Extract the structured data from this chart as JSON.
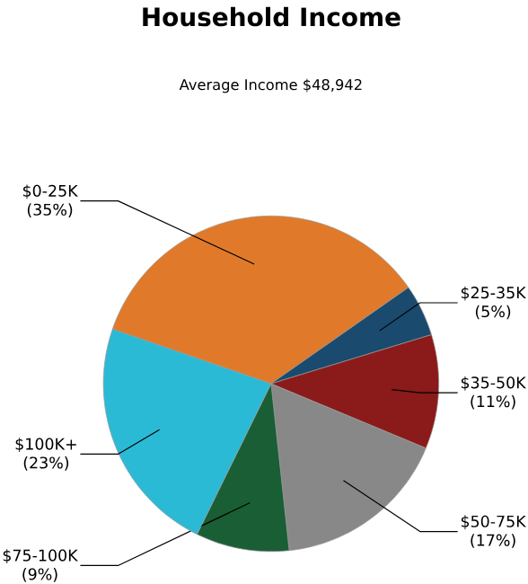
{
  "chart_data": {
    "type": "pie",
    "title": "Household Income",
    "subtitle": "Average Income  $48,942",
    "categories": [
      "$0-25K",
      "$25-35K",
      "$35-50K",
      "$50-75K",
      "$75-100K",
      "$100K+"
    ],
    "values": [
      35,
      5,
      11,
      17,
      9,
      23
    ],
    "colors": [
      "#e07a2a",
      "#1a4a6e",
      "#8b1a1a",
      "#888888",
      "#1a5e35",
      "#2bbad6"
    ],
    "value_labels": [
      "(35%)",
      "(5%)",
      "(11%)",
      "(17%)",
      "(9%)",
      "(23%)"
    ]
  }
}
